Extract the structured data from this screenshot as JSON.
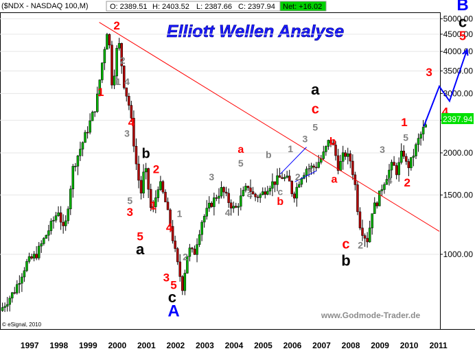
{
  "header": {
    "symbol": "($NDX - NASDAQ 100,M)",
    "open": "O: 2389.51",
    "high": "H: 2403.52",
    "low": "L: 2387.66",
    "close": "C: 2397.94",
    "net": "Net: +16.02"
  },
  "title": "Elliott Wellen Analyse",
  "watermark": "www.Godmode-Trader.de",
  "credit": "© eSignal, 2010",
  "last_price_label": "2397.94",
  "colors": {
    "up": "#00b000",
    "down": "#b00000",
    "trend": "#ff0000",
    "projection": "#0000ff",
    "title": "#1a1aff",
    "price_tag": "#00e000"
  },
  "chart_data": {
    "type": "candlestick",
    "symbol": "$NDX",
    "interval": "monthly",
    "y_scale": "log",
    "ylim": [
      600,
      5200
    ],
    "xlim": [
      1996.5,
      2011.55
    ],
    "y_ticks": [
      "5000.00",
      "4500.00",
      "4000.00",
      "3500.00",
      "3000.00",
      "2500.00",
      "2000.00",
      "1500.00",
      "1000.00"
    ],
    "y_tick_values": [
      5000,
      4500,
      4000,
      3500,
      3000,
      2500,
      2000,
      1500,
      1000
    ],
    "x_ticks": [
      "1997",
      "1998",
      "1999",
      "2000",
      "2001",
      "2002",
      "2003",
      "2004",
      "2005",
      "2006",
      "2007",
      "2008",
      "2009",
      "2010",
      "2011"
    ],
    "path": [
      [
        1996.5,
        680
      ],
      [
        1997.0,
        780
      ],
      [
        1997.4,
        940
      ],
      [
        1997.75,
        1000
      ],
      [
        1998.1,
        1150
      ],
      [
        1998.5,
        1350
      ],
      [
        1998.7,
        1150
      ],
      [
        1999.0,
        1800
      ],
      [
        1999.5,
        2350
      ],
      [
        1999.8,
        2800
      ],
      [
        2000.0,
        3700
      ],
      [
        2000.2,
        4800
      ],
      [
        2000.35,
        3100
      ],
      [
        2000.55,
        4400
      ],
      [
        2000.75,
        3200
      ],
      [
        2000.95,
        2700
      ],
      [
        2001.2,
        1750
      ],
      [
        2001.35,
        1500
      ],
      [
        2001.45,
        1850
      ],
      [
        2001.55,
        1650
      ],
      [
        2001.7,
        1300
      ],
      [
        2001.95,
        1650
      ],
      [
        2002.15,
        1450
      ],
      [
        2002.35,
        1200
      ],
      [
        2002.55,
        960
      ],
      [
        2002.75,
        800
      ],
      [
        2002.95,
        1040
      ],
      [
        2003.15,
        1000
      ],
      [
        2003.4,
        1250
      ],
      [
        2003.7,
        1400
      ],
      [
        2003.95,
        1500
      ],
      [
        2004.1,
        1560
      ],
      [
        2004.3,
        1450
      ],
      [
        2004.55,
        1350
      ],
      [
        2004.8,
        1500
      ],
      [
        2005.0,
        1600
      ],
      [
        2005.2,
        1480
      ],
      [
        2005.45,
        1500
      ],
      [
        2005.7,
        1600
      ],
      [
        2005.95,
        1650
      ],
      [
        2006.15,
        1700
      ],
      [
        2006.4,
        1650
      ],
      [
        2006.55,
        1480
      ],
      [
        2006.8,
        1700
      ],
      [
        2007.0,
        1800
      ],
      [
        2007.3,
        1820
      ],
      [
        2007.55,
        1950
      ],
      [
        2007.8,
        2200
      ],
      [
        2007.95,
        2050
      ],
      [
        2008.1,
        1800
      ],
      [
        2008.3,
        2000
      ],
      [
        2008.5,
        1900
      ],
      [
        2008.65,
        1650
      ],
      [
        2008.8,
        1250
      ],
      [
        2008.95,
        1150
      ],
      [
        2009.1,
        1100
      ],
      [
        2009.25,
        1350
      ],
      [
        2009.45,
        1450
      ],
      [
        2009.6,
        1600
      ],
      [
        2009.8,
        1750
      ],
      [
        2009.95,
        1850
      ],
      [
        2010.1,
        1750
      ],
      [
        2010.3,
        2050
      ],
      [
        2010.45,
        1800
      ],
      [
        2010.6,
        1900
      ],
      [
        2010.8,
        2150
      ],
      [
        2010.95,
        2300
      ],
      [
        2011.05,
        2398
      ]
    ],
    "trendline": [
      [
        1999.9,
        4880
      ],
      [
        2011.55,
        1170
      ]
    ],
    "projection": [
      [
        2011.02,
        2400
      ],
      [
        2011.55,
        3150
      ],
      [
        2011.9,
        2850
      ],
      [
        2012.5,
        4050
      ]
    ],
    "wave_labels": [
      {
        "t": "B",
        "x": 2012.35,
        "y": 5300,
        "c": "#0000ff",
        "s": 24
      },
      {
        "t": "c",
        "x": 2012.35,
        "y": 4720,
        "c": "#000000",
        "s": 22
      },
      {
        "t": "5",
        "x": 2012.35,
        "y": 4320,
        "c": "#ff0000",
        "s": 18
      },
      {
        "t": "3",
        "x": 2011.2,
        "y": 3380,
        "c": "#ff0000",
        "s": 17
      },
      {
        "t": "4",
        "x": 2011.75,
        "y": 2580,
        "c": "#ff0000",
        "s": 17
      },
      {
        "t": "2",
        "x": 2000.5,
        "y": 4650,
        "c": "#ff0000",
        "s": 17
      },
      {
        "t": "1",
        "x": 1999.95,
        "y": 2950,
        "c": "#ff0000",
        "s": 17
      },
      {
        "t": "2",
        "x": 2000.7,
        "y": 3680,
        "c": "#808080",
        "s": 14
      },
      {
        "t": "1",
        "x": 2000.55,
        "y": 3180,
        "c": "#808080",
        "s": 14
      },
      {
        "t": "4",
        "x": 2000.85,
        "y": 3180,
        "c": "#808080",
        "s": 14
      },
      {
        "t": "4",
        "x": 2001.0,
        "y": 2400,
        "c": "#ff0000",
        "s": 17
      },
      {
        "t": "3",
        "x": 2000.85,
        "y": 2230,
        "c": "#808080",
        "s": 14
      },
      {
        "t": "b",
        "x": 2001.5,
        "y": 1930,
        "c": "#000000",
        "s": 20
      },
      {
        "t": "2",
        "x": 2001.85,
        "y": 1740,
        "c": "#ff0000",
        "s": 17
      },
      {
        "t": "1",
        "x": 2001.75,
        "y": 1360,
        "c": "#ff0000",
        "s": 17
      },
      {
        "t": "5",
        "x": 2000.95,
        "y": 1410,
        "c": "#808080",
        "s": 14
      },
      {
        "t": "3",
        "x": 2000.95,
        "y": 1300,
        "c": "#ff0000",
        "s": 17
      },
      {
        "t": "5",
        "x": 2001.3,
        "y": 1100,
        "c": "#ff0000",
        "s": 17
      },
      {
        "t": "a",
        "x": 2001.3,
        "y": 1000,
        "c": "#000000",
        "s": 22
      },
      {
        "t": "4",
        "x": 2002.3,
        "y": 1170,
        "c": "#ff0000",
        "s": 17
      },
      {
        "t": "1",
        "x": 2002.65,
        "y": 1290,
        "c": "#808080",
        "s": 14
      },
      {
        "t": "3",
        "x": 2002.2,
        "y": 830,
        "c": "#ff0000",
        "s": 17
      },
      {
        "t": "5",
        "x": 2002.45,
        "y": 790,
        "c": "#ff0000",
        "s": 17
      },
      {
        "t": "2",
        "x": 2002.85,
        "y": 960,
        "c": "#808080",
        "s": 14
      },
      {
        "t": "c",
        "x": 2002.4,
        "y": 720,
        "c": "#000000",
        "s": 22
      },
      {
        "t": "A",
        "x": 2002.45,
        "y": 655,
        "c": "#0000ff",
        "s": 24
      },
      {
        "t": "3",
        "x": 2003.75,
        "y": 1660,
        "c": "#808080",
        "s": 14
      },
      {
        "t": "4",
        "x": 2004.3,
        "y": 1300,
        "c": "#808080",
        "s": 14
      },
      {
        "t": "a",
        "x": 2004.75,
        "y": 2000,
        "c": "#ff0000",
        "s": 16
      },
      {
        "t": "5",
        "x": 2004.75,
        "y": 1820,
        "c": "#808080",
        "s": 14
      },
      {
        "t": "a",
        "x": 2005.05,
        "y": 1480,
        "c": "#808080",
        "s": 14
      },
      {
        "t": "b",
        "x": 2005.7,
        "y": 1930,
        "c": "#808080",
        "s": 14
      },
      {
        "t": "c",
        "x": 2006.1,
        "y": 1500,
        "c": "#808080",
        "s": 14
      },
      {
        "t": "b",
        "x": 2006.1,
        "y": 1400,
        "c": "#ff0000",
        "s": 16
      },
      {
        "t": "1",
        "x": 2006.45,
        "y": 2010,
        "c": "#808080",
        "s": 14
      },
      {
        "t": "3",
        "x": 2006.95,
        "y": 2150,
        "c": "#808080",
        "s": 14
      },
      {
        "t": "2",
        "x": 2006.7,
        "y": 1660,
        "c": "#808080",
        "s": 14
      },
      {
        "t": "4",
        "x": 2007.1,
        "y": 1750,
        "c": "#808080",
        "s": 14
      },
      {
        "t": "a",
        "x": 2007.3,
        "y": 2980,
        "c": "#000000",
        "s": 22
      },
      {
        "t": "c",
        "x": 2007.3,
        "y": 2620,
        "c": "#ff0000",
        "s": 20
      },
      {
        "t": "5",
        "x": 2007.3,
        "y": 2330,
        "c": "#808080",
        "s": 14
      },
      {
        "t": "b",
        "x": 2007.9,
        "y": 2110,
        "c": "#ff0000",
        "s": 16
      },
      {
        "t": "a",
        "x": 2007.95,
        "y": 1630,
        "c": "#ff0000",
        "s": 16
      },
      {
        "t": "c",
        "x": 2008.35,
        "y": 1040,
        "c": "#ff0000",
        "s": 20
      },
      {
        "t": "b",
        "x": 2008.35,
        "y": 925,
        "c": "#000000",
        "s": 22
      },
      {
        "t": "2",
        "x": 2008.85,
        "y": 1040,
        "c": "#808080",
        "s": 14
      },
      {
        "t": "3",
        "x": 2009.6,
        "y": 2000,
        "c": "#808080",
        "s": 14
      },
      {
        "t": "4",
        "x": 2009.85,
        "y": 1620,
        "c": "#808080",
        "s": 14
      },
      {
        "t": "1",
        "x": 2010.35,
        "y": 2400,
        "c": "#ff0000",
        "s": 17
      },
      {
        "t": "5",
        "x": 2010.4,
        "y": 2170,
        "c": "#808080",
        "s": 14
      },
      {
        "t": "2",
        "x": 2010.45,
        "y": 1590,
        "c": "#ff0000",
        "s": 17
      }
    ]
  }
}
